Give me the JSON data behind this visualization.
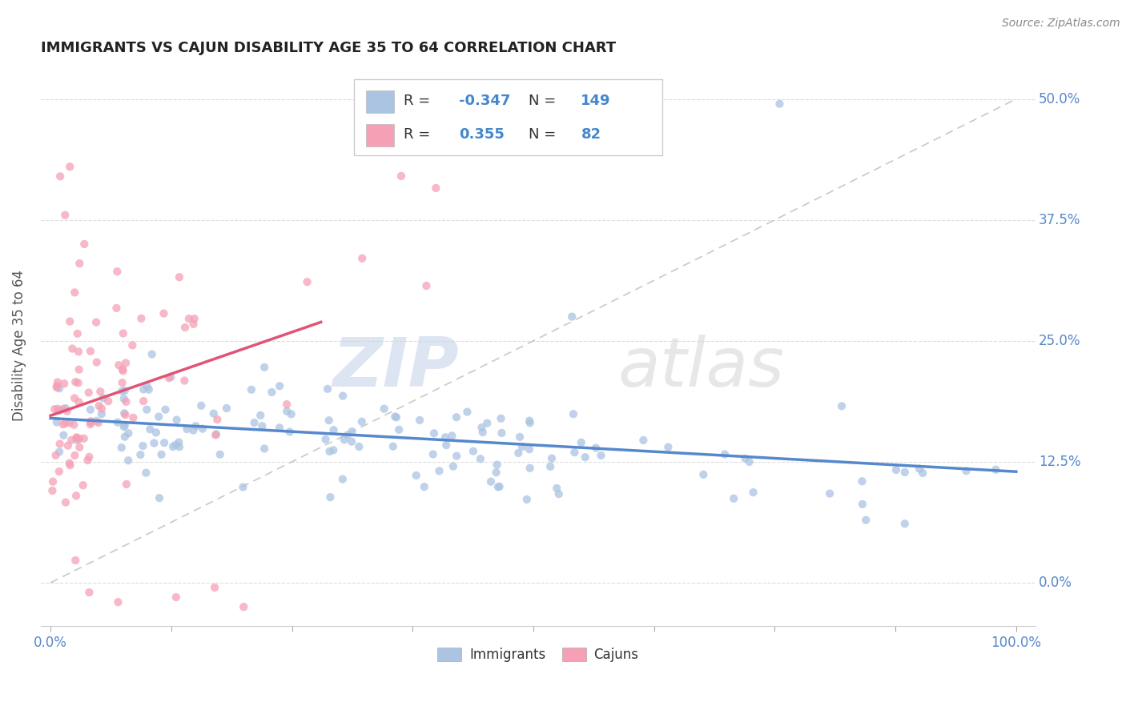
{
  "title": "IMMIGRANTS VS CAJUN DISABILITY AGE 35 TO 64 CORRELATION CHART",
  "source_text": "Source: ZipAtlas.com",
  "ylabel": "Disability Age 35 to 64",
  "watermark_zip": "ZIP",
  "watermark_atlas": "atlas",
  "xlim": [
    -0.01,
    1.02
  ],
  "ylim": [
    -0.045,
    0.535
  ],
  "ytick_vals": [
    0.0,
    0.125,
    0.25,
    0.375,
    0.5
  ],
  "ytick_labels": [
    "0.0%",
    "12.5%",
    "25.0%",
    "37.5%",
    "50.0%"
  ],
  "xtick_vals": [
    0.0,
    0.125,
    0.25,
    0.375,
    0.5,
    0.625,
    0.75,
    0.875,
    1.0
  ],
  "xtick_edge_labels": [
    "0.0%",
    "100.0%"
  ],
  "immigrants_R": -0.347,
  "immigrants_N": 149,
  "cajuns_R": 0.355,
  "cajuns_N": 82,
  "immigrants_color": "#aac4e2",
  "cajuns_color": "#f5a0b5",
  "immigrants_line_color": "#5588cc",
  "cajuns_line_color": "#e05575",
  "ref_line_color": "#bbbbbb",
  "legend_label_immigrants": "Immigrants",
  "legend_label_cajuns": "Cajuns",
  "background_color": "#ffffff",
  "grid_color": "#dddddd",
  "title_color": "#222222",
  "axis_label_color": "#555555",
  "right_tick_color": "#5588cc",
  "source_color": "#888888",
  "legend_box_color": "#eeeeee"
}
